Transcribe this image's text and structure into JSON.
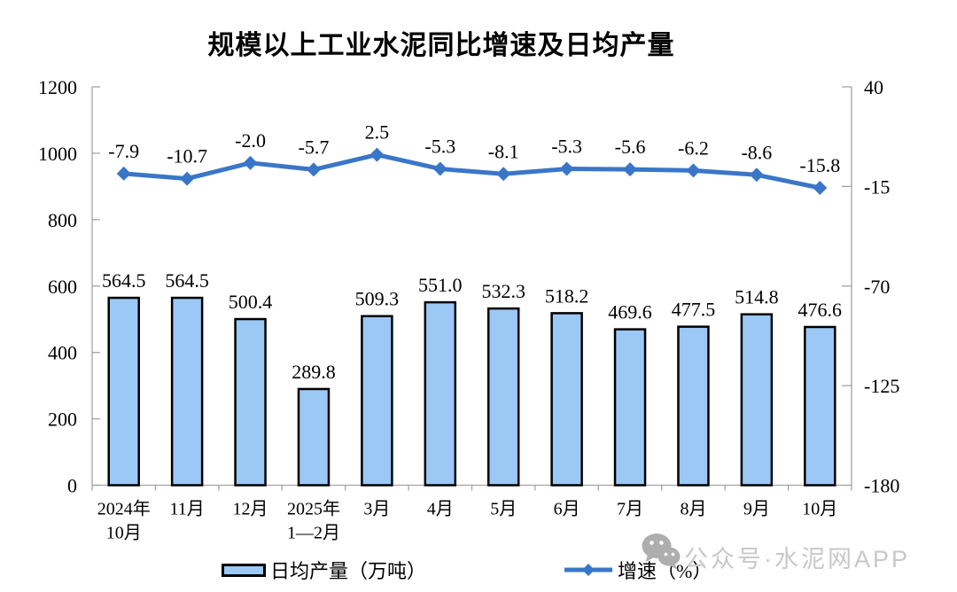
{
  "title": "规模以上工业水泥同比增速及日均产量",
  "chart_data": {
    "type": "bar+line combo",
    "title": "规模以上工业水泥同比增速及日均产量",
    "categories": [
      [
        "2024年",
        "10月"
      ],
      [
        "11月"
      ],
      [
        "12月"
      ],
      [
        "2025年",
        "1—2月"
      ],
      [
        "3月"
      ],
      [
        "4月"
      ],
      [
        "5月"
      ],
      [
        "6月"
      ],
      [
        "7月"
      ],
      [
        "8月"
      ],
      [
        "9月"
      ],
      [
        "10月"
      ]
    ],
    "series": [
      {
        "name": "日均产量（万吨）",
        "type": "bar",
        "axis": "left",
        "values": [
          564.5,
          564.5,
          500.4,
          289.8,
          509.3,
          551.0,
          532.3,
          518.2,
          469.6,
          477.5,
          514.8,
          476.6
        ],
        "labels": [
          "564.5",
          "564.5",
          "500.4",
          "289.8",
          "509.3",
          "551.0",
          "532.3",
          "518.2",
          "469.6",
          "477.5",
          "514.8",
          "476.6"
        ]
      },
      {
        "name": "增速（%）",
        "type": "line",
        "axis": "right",
        "values": [
          -7.9,
          -10.7,
          -2.0,
          -5.7,
          2.5,
          -5.3,
          -8.1,
          -5.3,
          -5.6,
          -6.2,
          -8.6,
          -15.8
        ],
        "labels": [
          "-7.9",
          "-10.7",
          "-2.0",
          "-5.7",
          "2.5",
          "-5.3",
          "-8.1",
          "-5.3",
          "-5.6",
          "-6.2",
          "-8.6",
          "-15.8"
        ]
      }
    ],
    "left_axis": {
      "range": [
        0,
        1200
      ],
      "ticks": [
        0,
        200,
        400,
        600,
        800,
        1000,
        1200
      ]
    },
    "right_axis": {
      "range": [
        -180,
        40
      ],
      "ticks": [
        40,
        -15,
        -70,
        -125,
        -180
      ]
    },
    "grid": false,
    "legend_position": "bottom",
    "colors": {
      "bar_fill": "#9CC8F5",
      "bar_border": "#000000",
      "line": "#3A76C8",
      "axis": "#A3A3A3",
      "label": "#000000"
    }
  },
  "legend": {
    "bar_label": "日均产量（万吨）",
    "line_label": "增速（%）"
  },
  "watermark": {
    "icon": "wechat-icon",
    "text": "公众号·水泥网APP"
  }
}
